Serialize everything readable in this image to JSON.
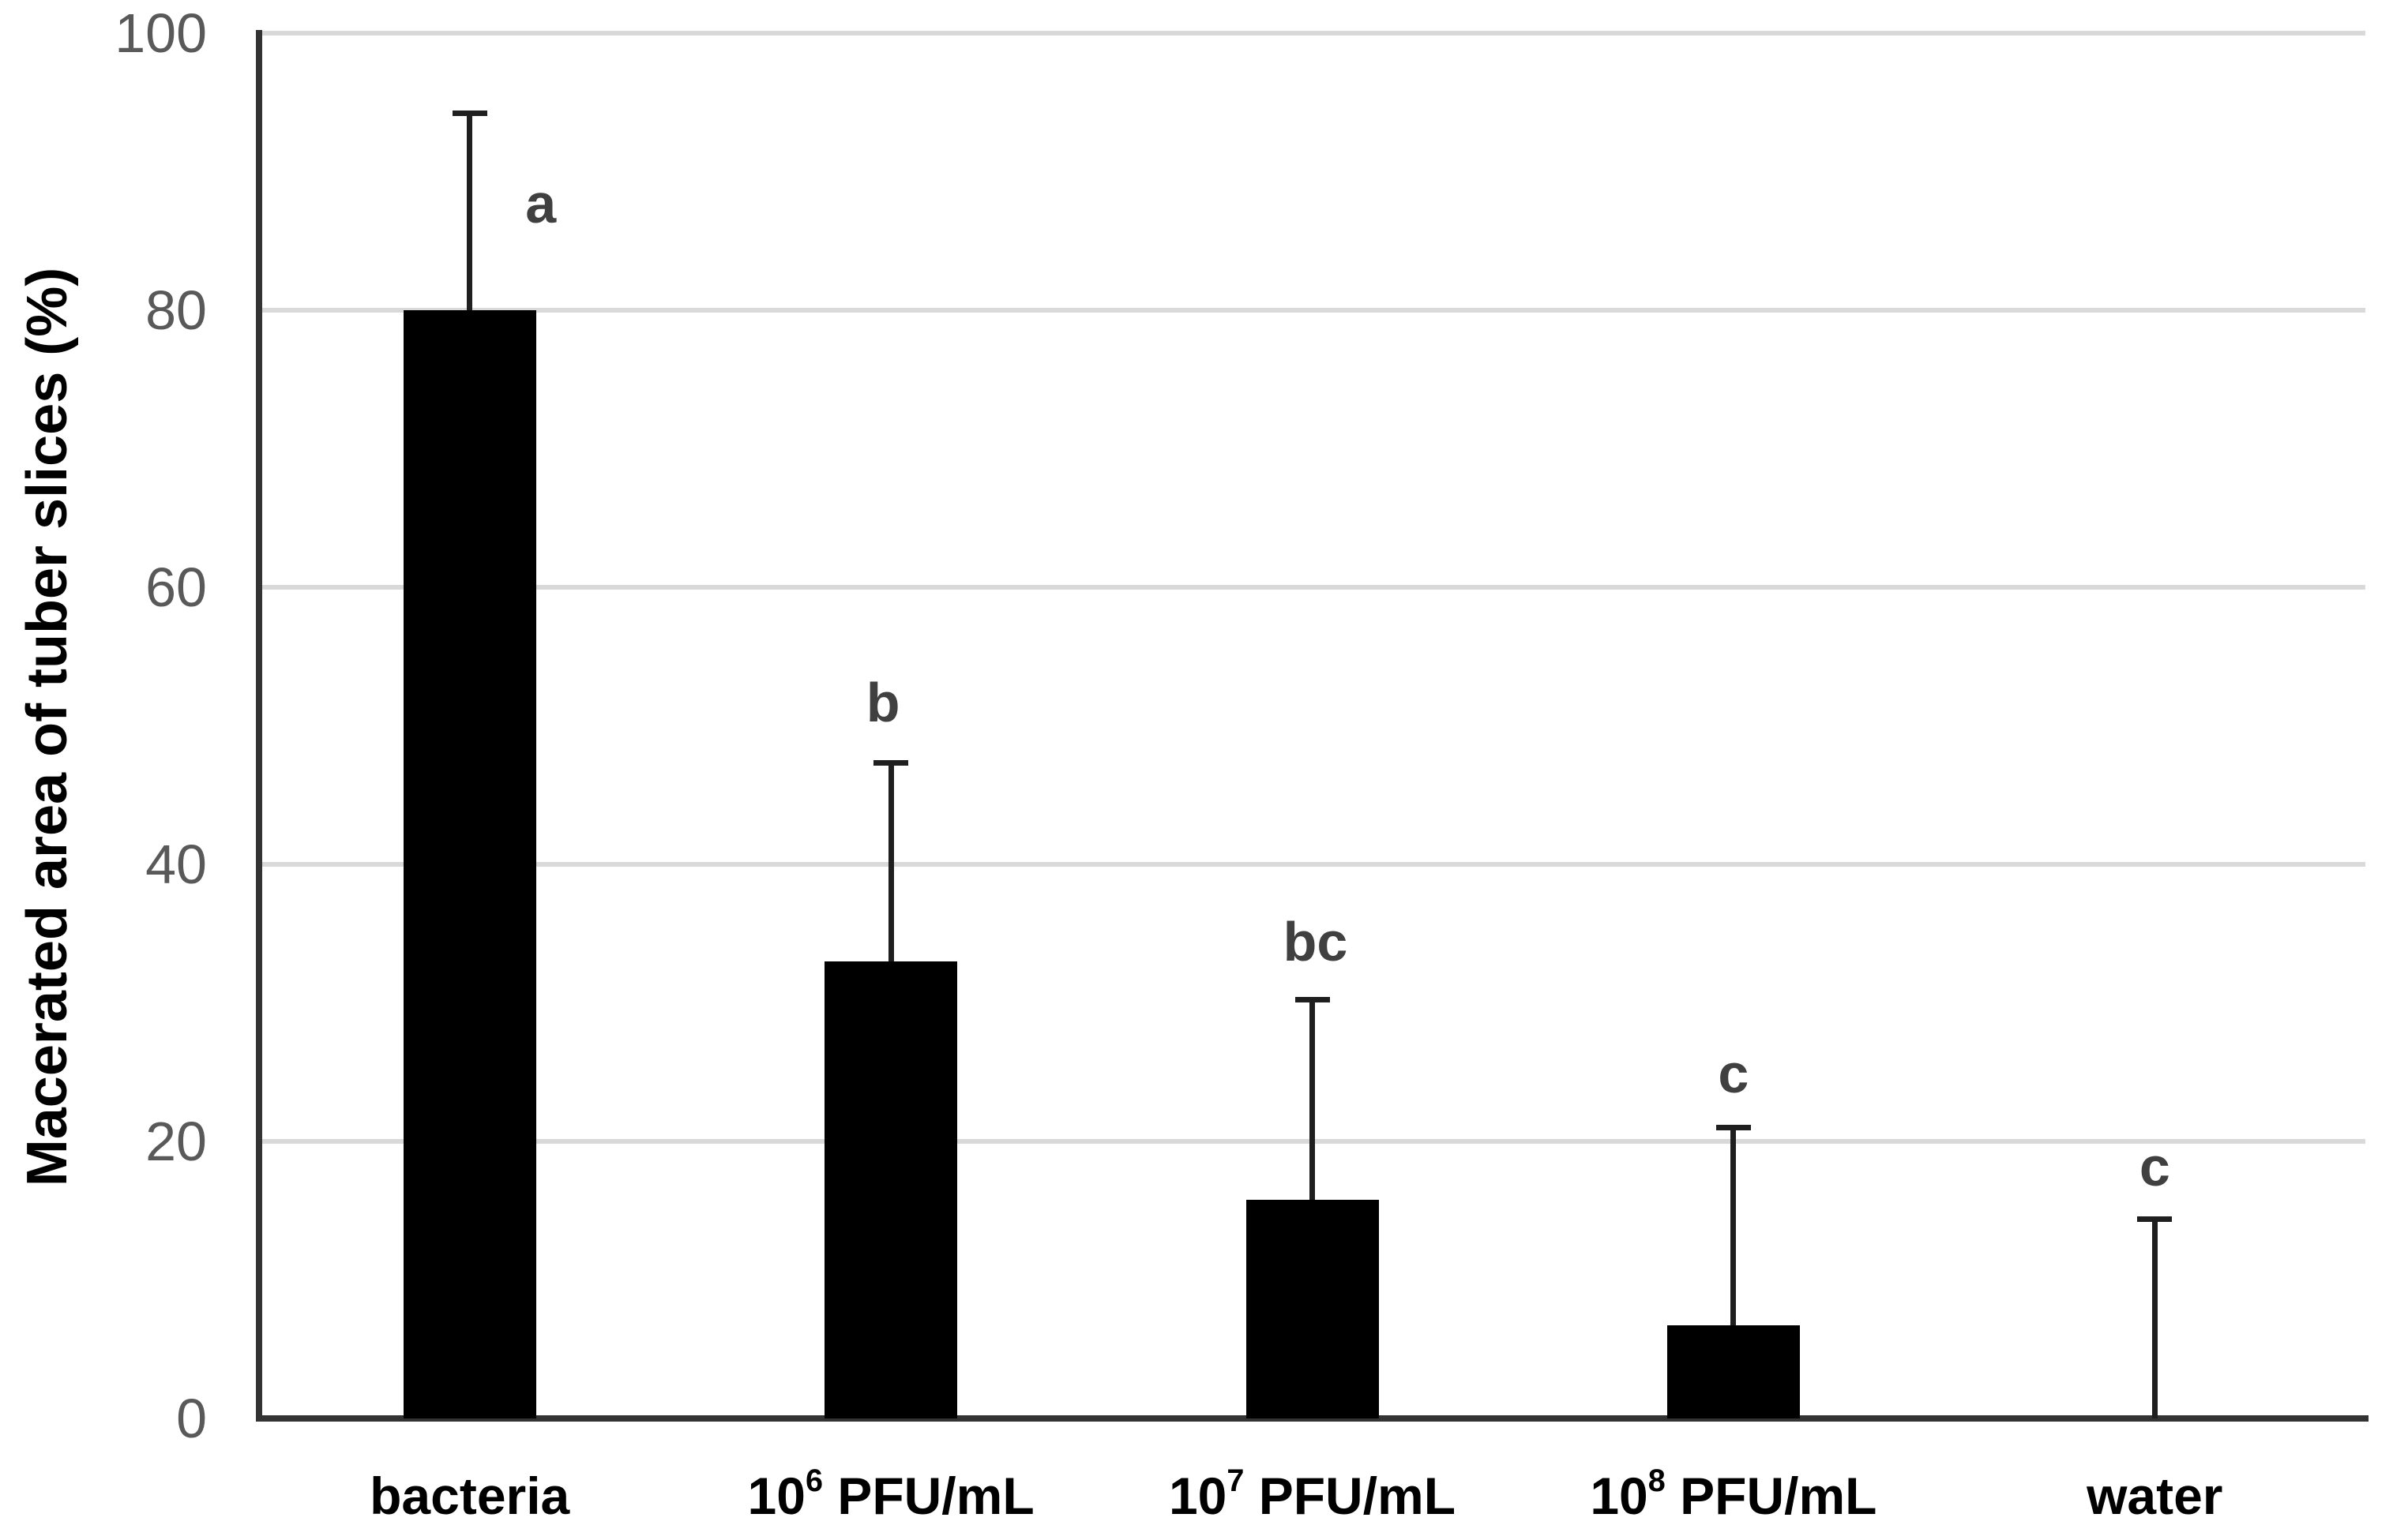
{
  "page": {
    "background": "#ffffff"
  },
  "chart_data": {
    "type": "bar",
    "title": "",
    "xlabel": "",
    "ylabel": "Macerated area of tuber slices (%)",
    "ylim": [
      0,
      100
    ],
    "yticks": [
      0,
      20,
      40,
      60,
      80,
      100
    ],
    "grid": true,
    "legend": "none",
    "colors": {
      "bar": "#000000",
      "gridline": "#d9d9d9",
      "axis": "#333333",
      "tick_label": "#595959",
      "sig_letter": "#404040",
      "x_label": "#000000",
      "error_bar": "#1f1f1f"
    },
    "categories": [
      "bacteria",
      "10^6 PFU/mL",
      "10^7 PFU/mL",
      "10^8 PFU/mL",
      "water"
    ],
    "points": [
      {
        "category_label": "bacteria",
        "value": 80,
        "error_top": 94.2,
        "sig_letter": "a",
        "sig_letter_y": 87.7,
        "sig_letter_dx_px": 90
      },
      {
        "category_base": "10",
        "category_sup": "6",
        "category_rest": " PFU/mL",
        "value": 33,
        "error_top": 47.3,
        "sig_letter": "b",
        "sig_letter_y": 51.7,
        "sig_letter_dx_px": -10
      },
      {
        "category_base": "10",
        "category_sup": "7",
        "category_rest": " PFU/mL",
        "value": 15.8,
        "error_top": 30.2,
        "sig_letter": "bc",
        "sig_letter_y": 34.4,
        "sig_letter_dx_px": 4
      },
      {
        "category_base": "10",
        "category_sup": "8",
        "category_rest": " PFU/mL",
        "value": 6.7,
        "error_top": 21.0,
        "sig_letter": "c",
        "sig_letter_y": 24.9,
        "sig_letter_dx_px": 0
      },
      {
        "category_label": "water",
        "value": 0,
        "error_top": 14.4,
        "sig_letter": "c",
        "sig_letter_y": 18.2,
        "sig_letter_dx_px": 0
      }
    ]
  }
}
